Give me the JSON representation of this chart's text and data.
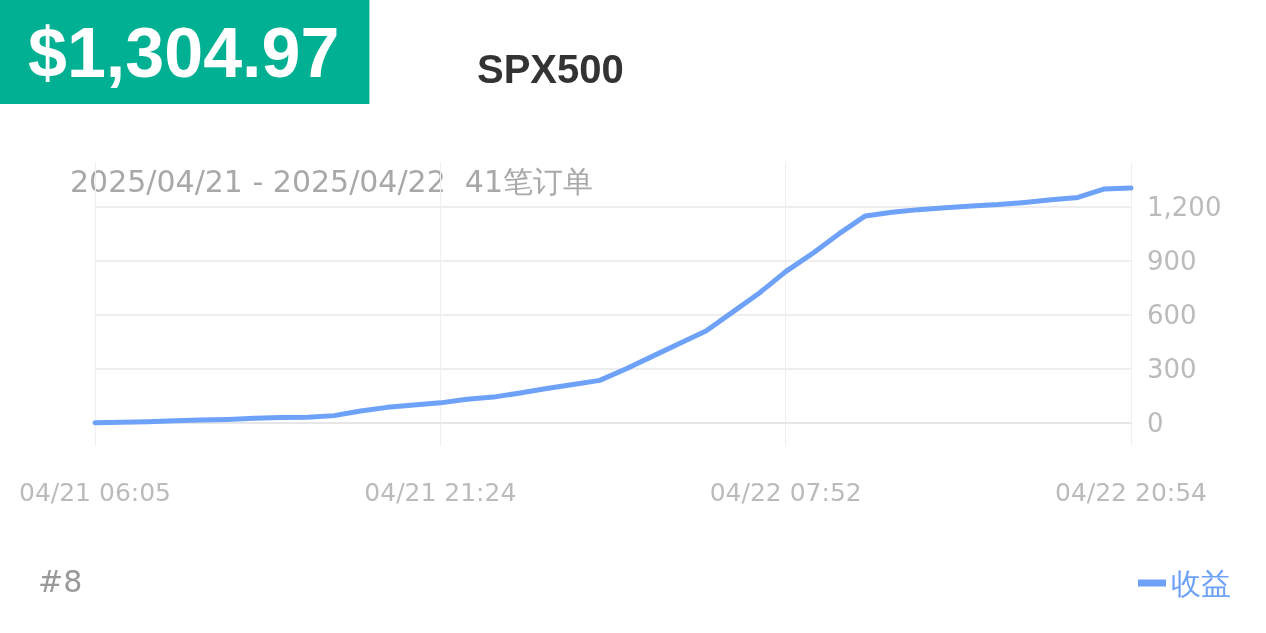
{
  "chart_data": {
    "type": "line",
    "title": "$1,304.97",
    "subtitle": "SPX500",
    "annotations": [
      "2025/04/21 - 2025/04/22  41笔订单",
      "#8"
    ],
    "categories": [
      "04/21 06:05",
      null,
      null,
      null,
      null,
      null,
      null,
      null,
      null,
      null,
      null,
      null,
      null,
      "04/21 21:24",
      null,
      null,
      null,
      null,
      null,
      null,
      null,
      null,
      null,
      null,
      null,
      null,
      "04/22 07:52",
      null,
      null,
      null,
      null,
      null,
      null,
      null,
      null,
      null,
      null,
      null,
      null,
      "04/22 20:54"
    ],
    "series": [
      {
        "name": "收益",
        "color": "#6ea1f8",
        "values": [
          0,
          2,
          5,
          10,
          14,
          18,
          25,
          28,
          30,
          39,
          65,
          85,
          98,
          110,
          130,
          142,
          165,
          190,
          212,
          235,
          300,
          370,
          440,
          510,
          615,
          720,
          840,
          940,
          1050,
          1150,
          1170,
          1185,
          1195,
          1205,
          1213,
          1225,
          1240,
          1253,
          1300,
          1305
        ]
      }
    ],
    "ylim": [
      -130,
      1450
    ],
    "yticks": [
      0,
      300,
      600,
      900,
      {
        "value": 1200,
        "label": "1,200"
      }
    ],
    "grid": true,
    "legend": "bottom right",
    "marker": "none",
    "line_style": "solid"
  }
}
